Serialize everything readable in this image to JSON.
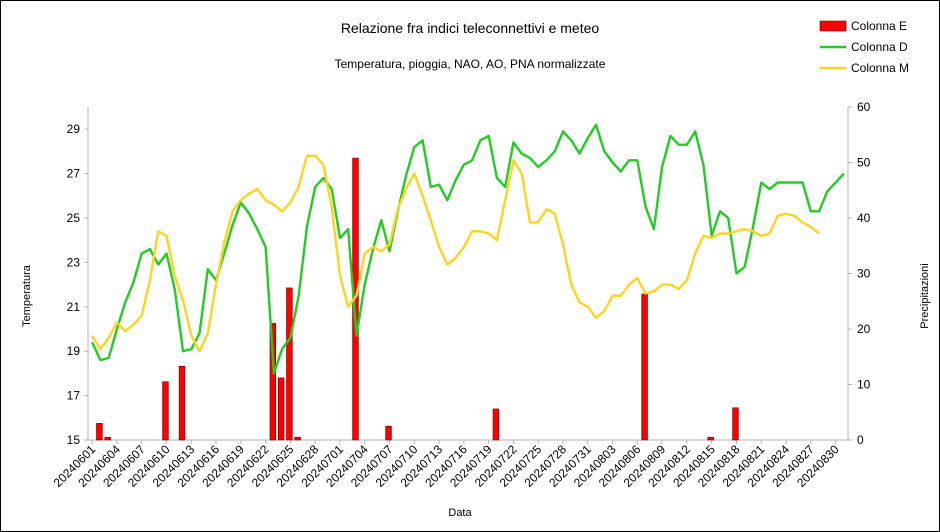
{
  "chart_data": {
    "type": "combo",
    "title": "Relazione fra indici teleconnettivi  e meteo",
    "subtitle": "Temperatura, pioggia, NAO, AO, PNA normalizzate",
    "x_label": "Data",
    "y_label": "Temperatura",
    "y2_label": "Precipitazioni",
    "legend": "top-right",
    "categories": [
      "20240601",
      null,
      null,
      "20240604",
      null,
      null,
      "20240607",
      null,
      null,
      "20240610",
      null,
      null,
      "20240613",
      null,
      null,
      "20240616",
      null,
      null,
      "20240619",
      null,
      null,
      "20240622",
      null,
      null,
      "20240625",
      null,
      null,
      "20240628",
      null,
      null,
      "20240701",
      null,
      null,
      "20240704",
      null,
      null,
      "20240707",
      null,
      null,
      "20240710",
      null,
      null,
      "20240713",
      null,
      null,
      "20240716",
      null,
      null,
      "20240719",
      null,
      null,
      "20240722",
      null,
      null,
      "20240725",
      null,
      null,
      "20240728",
      null,
      null,
      "20240731",
      null,
      null,
      "20240803",
      null,
      null,
      "20240806",
      null,
      null,
      "20240809",
      null,
      null,
      "20240812",
      null,
      null,
      "20240815",
      null,
      null,
      "20240818",
      null,
      null,
      "20240821",
      null,
      null,
      "20240824",
      null,
      null,
      "20240827",
      null,
      null,
      "20240830",
      null
    ],
    "ylim": [
      15,
      30
    ],
    "yticks": [
      15,
      17,
      19,
      21,
      23,
      25,
      27,
      29
    ],
    "y2lim": [
      0,
      60
    ],
    "y2ticks": [
      0,
      10,
      20,
      30,
      40,
      50,
      60
    ],
    "series": [
      {
        "name": "Colonna E",
        "type": "bar",
        "axis": "y2",
        "color": "#ff0000",
        "values": [
          0,
          3,
          0.5,
          0,
          0,
          0,
          0,
          0,
          0,
          10.5,
          0,
          13.3,
          0,
          0,
          0,
          0,
          0,
          0,
          0,
          0,
          0,
          0,
          21,
          11.2,
          27.4,
          0.5,
          0,
          0,
          0,
          0,
          0,
          0,
          50.8,
          0,
          0,
          0,
          2.5,
          0,
          0,
          0,
          0,
          0,
          0,
          0,
          0,
          0,
          0,
          0,
          0,
          5.6,
          0,
          0,
          0,
          0,
          0,
          0,
          0,
          0,
          0,
          0,
          0,
          0,
          0,
          0,
          0,
          0,
          0,
          26.3,
          0,
          0,
          0,
          0,
          0,
          0,
          0,
          0.5,
          0,
          0,
          5.8,
          0,
          0,
          0,
          0,
          0,
          0,
          0,
          0,
          0,
          0,
          0,
          0,
          0
        ]
      },
      {
        "name": "Colonna D",
        "type": "line",
        "color": "#22cc22",
        "values": [
          19.4,
          18.6,
          18.7,
          20,
          21.2,
          22.1,
          23.4,
          23.6,
          22.9,
          23.4,
          21.8,
          19,
          19.1,
          19.8,
          22.7,
          22.2,
          23.4,
          24.7,
          25.7,
          25.2,
          24.5,
          23.7,
          18,
          19.1,
          19.6,
          21.5,
          24.6,
          26.4,
          26.8,
          26.3,
          24.1,
          24.5,
          19.7,
          22,
          23.6,
          24.9,
          23.5,
          25.3,
          26.9,
          28.2,
          28.5,
          26.4,
          26.5,
          25.8,
          26.7,
          27.4,
          27.6,
          28.5,
          28.7,
          26.8,
          26.4,
          28.4,
          27.9,
          27.7,
          27.3,
          27.6,
          28,
          28.9,
          28.5,
          27.9,
          28.6,
          29.2,
          28,
          27.5,
          27.1,
          27.6,
          27.6,
          25.5,
          24.5,
          27.3,
          28.7,
          28.3,
          28.3,
          28.9,
          27.4,
          24.2,
          25.3,
          25,
          22.5,
          22.8,
          24.6,
          26.6,
          26.3,
          26.6,
          26.6,
          26.6,
          26.6,
          25.3,
          25.3,
          26.2,
          26.6,
          27
        ]
      },
      {
        "name": "Colonna M",
        "type": "line",
        "color": "#ffd320",
        "values": [
          19.7,
          19.1,
          19.6,
          20.3,
          19.9,
          20.2,
          20.6,
          22.2,
          24.4,
          24.2,
          22.4,
          21.3,
          19.7,
          19,
          19.8,
          22,
          23.9,
          25.3,
          25.8,
          26.1,
          26.3,
          25.8,
          25.6,
          25.3,
          25.7,
          26.4,
          27.8,
          27.8,
          27.4,
          25.5,
          22.4,
          21,
          21.5,
          23.4,
          23.7,
          23.5,
          23.8,
          25.4,
          26.3,
          27,
          26,
          24.9,
          23.7,
          22.9,
          23.2,
          23.7,
          24.4,
          24.4,
          24.3,
          24,
          25.8,
          27.6,
          27,
          24.8,
          24.8,
          25.4,
          25.2,
          23.8,
          22,
          21.2,
          21,
          20.5,
          20.8,
          21.5,
          21.5,
          22,
          22.3,
          21.6,
          21.7,
          22,
          22,
          21.8,
          22.2,
          23.4,
          24.2,
          24.1,
          24.3,
          24.3,
          24.4,
          24.5,
          24.4,
          24.2,
          24.3,
          25.1,
          25.2,
          25.1,
          24.8,
          24.6,
          24.3,
          null,
          null,
          null
        ]
      }
    ]
  }
}
